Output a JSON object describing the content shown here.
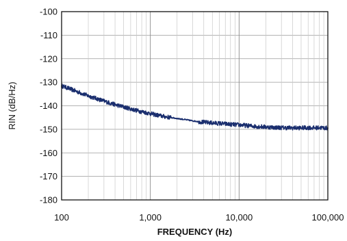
{
  "chart_data": {
    "type": "line",
    "title": "",
    "xlabel": "FREQUENCY (Hz)",
    "ylabel": "RIN (dB/Hz)",
    "x_scale": "log",
    "xlim": [
      100,
      100000
    ],
    "ylim": [
      -180,
      -100
    ],
    "x_ticks": [
      100,
      1000,
      10000,
      100000
    ],
    "x_tick_labels": [
      "100",
      "1,000",
      "10,000",
      "100,000"
    ],
    "y_ticks": [
      -100,
      -110,
      -120,
      -130,
      -140,
      -150,
      -160,
      -170,
      -180
    ],
    "y_tick_labels": [
      "-100",
      "-110",
      "-120",
      "-130",
      "-140",
      "-150",
      "-160",
      "-170",
      "-180"
    ],
    "grid": true,
    "legend": "none",
    "series_color": "#1a2e6e",
    "series": [
      {
        "x": [
          100,
          120,
          150,
          200,
          250,
          300,
          400,
          500,
          600,
          700,
          800,
          1000,
          1200,
          1500,
          1700,
          2000,
          2500,
          3000,
          4000,
          5000,
          6000,
          7000,
          8000,
          10000,
          12000,
          15000,
          20000,
          25000,
          30000,
          40000,
          50000,
          60000,
          70000,
          80000,
          100000
        ],
        "y": [
          -131.5,
          -132.6,
          -134.0,
          -135.8,
          -137.0,
          -138.0,
          -139.5,
          -140.5,
          -141.3,
          -142.0,
          -142.5,
          -143.3,
          -144.0,
          -144.7,
          -145.0,
          -145.4,
          -145.9,
          -146.4,
          -147.0,
          -147.3,
          -147.5,
          -147.7,
          -147.9,
          -148.1,
          -148.4,
          -148.7,
          -149.0,
          -149.2,
          -149.3,
          -149.4,
          -149.4,
          -149.3,
          -149.4,
          -149.3,
          -149.5
        ]
      }
    ]
  }
}
